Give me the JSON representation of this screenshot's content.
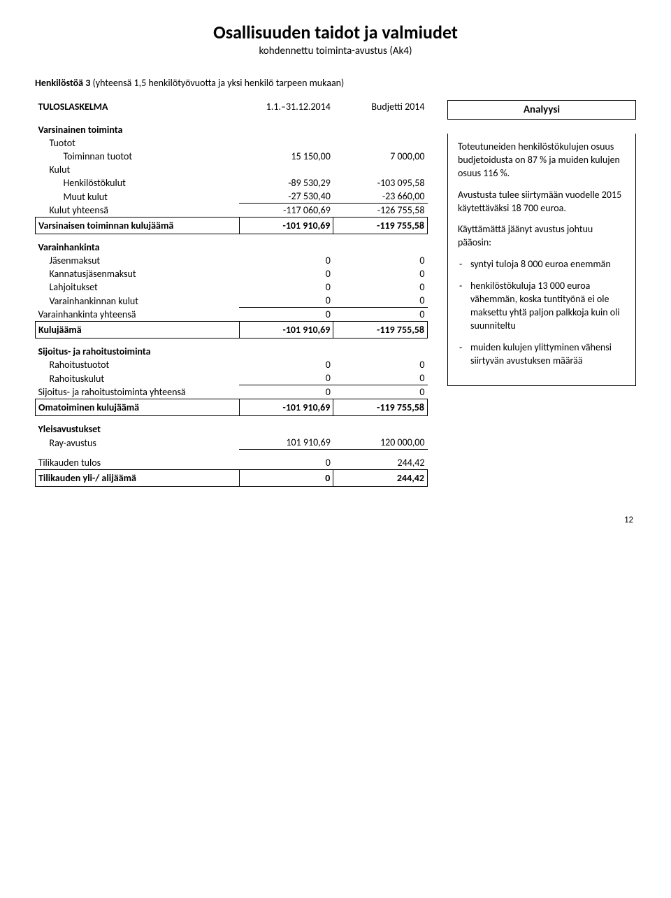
{
  "title": "Osallisuuden taidot ja valmiudet",
  "subtitle": "kohdennettu toiminta-avustus (Ak4)",
  "staff_line_label": "Henkilöstöä 3",
  "staff_line_detail": " (yhteensä 1,5 henkilötyövuotta ja yksi henkilö tarpeen mukaan)",
  "table": {
    "header_left": "TULOSLASKELMA",
    "header_col1": "1.1.–31.12.2014",
    "header_col2": "Budjetti 2014",
    "rows": {
      "varsinainen_toiminta": "Varsinainen toiminta",
      "tuotot": "Tuotot",
      "toiminnan_tuotot": "Toiminnan tuotot",
      "toiminnan_tuotot_v1": "15 150,00",
      "toiminnan_tuotot_v2": "7 000,00",
      "kulut": "Kulut",
      "henkilostokulut": "Henkilöstökulut",
      "henkilostokulut_v1": "-89 530,29",
      "henkilostokulut_v2": "-103 095,58",
      "muut_kulut": "Muut kulut",
      "muut_kulut_v1": "-27 530,40",
      "muut_kulut_v2": "-23 660,00",
      "kulut_yhteensa": "Kulut yhteensä",
      "kulut_yhteensa_v1": "-117 060,69",
      "kulut_yhteensa_v2": "-126 755,58",
      "vars_toim_kulujaama": "Varsinaisen toiminnan kulujäämä",
      "vars_toim_kulujaama_v1": "-101 910,69",
      "vars_toim_kulujaama_v2": "-119 755,58",
      "varainhankinta": "Varainhankinta",
      "jasenmaksut": "Jäsenmaksut",
      "jasenmaksut_v1": "0",
      "jasenmaksut_v2": "0",
      "kannatusjasenmaksut": "Kannatusjäsenmaksut",
      "kannatusjasenmaksut_v1": "0",
      "kannatusjasenmaksut_v2": "0",
      "lahjoitukset": "Lahjoitukset",
      "lahjoitukset_v1": "0",
      "lahjoitukset_v2": "0",
      "varainhankinnan_kulut": "Varainhankinnan kulut",
      "varainhankinnan_kulut_v1": "0",
      "varainhankinnan_kulut_v2": "0",
      "varainhankinta_yhteensa": "Varainhankinta yhteensä",
      "varainhankinta_yhteensa_v1": "0",
      "varainhankinta_yhteensa_v2": "0",
      "kulujaama": "Kulujäämä",
      "kulujaama_v1": "-101 910,69",
      "kulujaama_v2": "-119 755,58",
      "sijoitus_rahoitus": "Sijoitus- ja rahoitustoiminta",
      "rahoitustuotot": "Rahoitustuotot",
      "rahoitustuotot_v1": "0",
      "rahoitustuotot_v2": "0",
      "rahoituskulut": "Rahoituskulut",
      "rahoituskulut_v1": "0",
      "rahoituskulut_v2": "0",
      "sijoitus_yhteensa": "Sijoitus- ja rahoitustoiminta yhteensä",
      "sijoitus_yhteensa_v1": "0",
      "sijoitus_yhteensa_v2": "0",
      "omatoiminen_kulujaama": "Omatoiminen kulujäämä",
      "omatoiminen_kulujaama_v1": "-101 910,69",
      "omatoiminen_kulujaama_v2": "-119 755,58",
      "yleisavustukset": "Yleisavustukset",
      "ray_avustus": "Ray-avustus",
      "ray_avustus_v1": "101 910,69",
      "ray_avustus_v2": "120 000,00",
      "tilikauden_tulos": "Tilikauden tulos",
      "tilikauden_tulos_v1": "0",
      "tilikauden_tulos_v2": "244,42",
      "tilikauden_ylialijaama": "Tilikauden yli-/ alijäämä",
      "tilikauden_ylialijaama_v1": "0",
      "tilikauden_ylialijaama_v2": "244,42"
    }
  },
  "analysis": {
    "title": "Analyysi",
    "p1": "Toteutuneiden henkilöstökulujen osuus budjetoidusta on 87 % ja muiden kulujen osuus 116 %.",
    "p2": "Avustusta tulee siirtymään vuodelle 2015 käytettäväksi 18 700 euroa.",
    "p3": "Käyttämättä jäänyt avustus johtuu pääosin:",
    "bullets": [
      "syntyi tuloja 8 000 euroa enemmän",
      "henkilöstökuluja 13 000 euroa vähemmän, koska tuntityönä ei ole maksettu yhtä paljon palkkoja kuin oli suunniteltu",
      "muiden kulujen ylittyminen vähensi siirtyvän avustuksen määrää"
    ]
  },
  "page_number": "12"
}
